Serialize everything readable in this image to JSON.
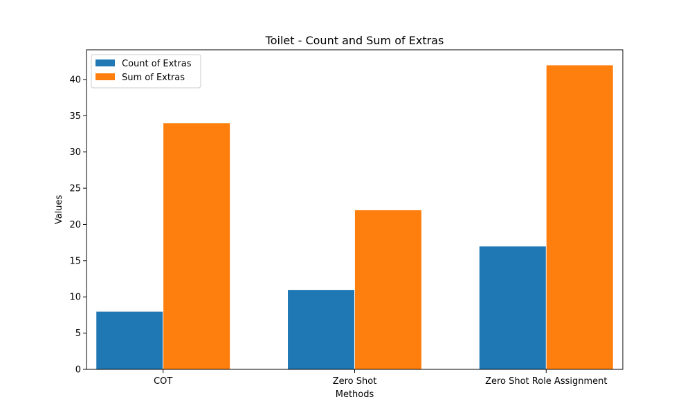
{
  "chart_data": {
    "type": "bar",
    "title": "Toilet - Count and Sum of Extras",
    "xlabel": "Methods",
    "ylabel": "Values",
    "categories": [
      "COT",
      "Zero Shot",
      "Zero Shot Role Assignment"
    ],
    "series": [
      {
        "name": "Count of Extras",
        "color": "#1f77b4",
        "values": [
          8,
          11,
          17
        ]
      },
      {
        "name": "Sum of Extras",
        "color": "#ff7f0e",
        "values": [
          34,
          22,
          42
        ]
      }
    ],
    "ylim": [
      0,
      44.1
    ],
    "yticks": [
      0,
      5,
      10,
      15,
      20,
      25,
      30,
      35,
      40
    ],
    "legend": "top-left",
    "grid": false
  }
}
